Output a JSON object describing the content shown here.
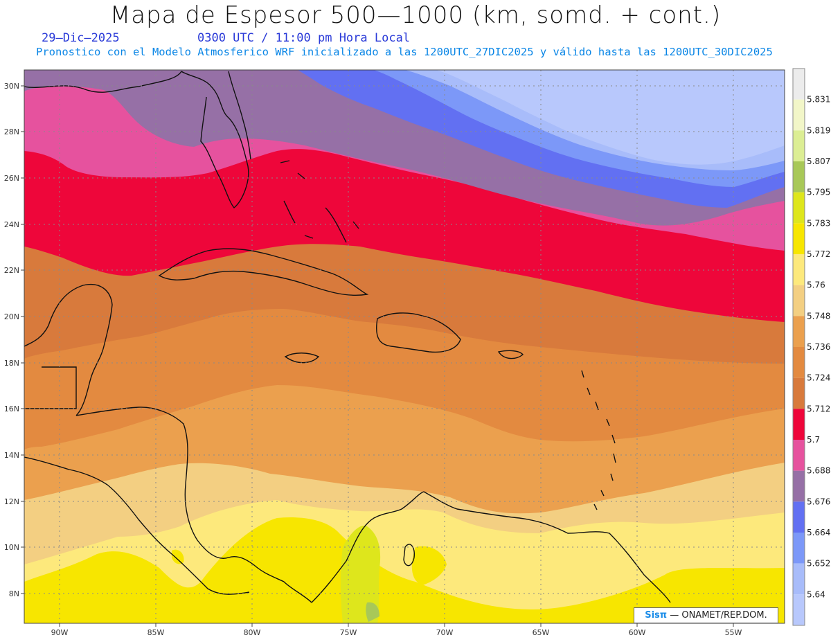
{
  "header": {
    "title": "Mapa de Espesor 500—1000 (km, somd. + cont.)",
    "date": "29—Dic—2025",
    "time": "0300 UTC / 11:00 pm Hora Local",
    "subtitle": "Pronostico con el Modelo Atmosferico WRF inicializado a las 1200UTC_27DIC2025 y válido hasta las  1200UTC_30DIC2025"
  },
  "axes": {
    "lat_labels": [
      "30N",
      "28N",
      "26N",
      "24N",
      "22N",
      "20N",
      "18N",
      "16N",
      "14N",
      "12N",
      "10N",
      "8N"
    ],
    "lon_labels": [
      "90W",
      "85W",
      "80W",
      "75W",
      "70W",
      "65W",
      "60W",
      "55W"
    ]
  },
  "legend": {
    "labels": [
      "5.831",
      "5.819",
      "5.807",
      "5.795",
      "5.783",
      "5.772",
      "5.76",
      "5.748",
      "5.736",
      "5.724",
      "5.712",
      "5.7",
      "5.688",
      "5.676",
      "5.664",
      "5.652",
      "5.64"
    ],
    "colors": [
      "#ececec",
      "#f2f6c8",
      "#dcee94",
      "#a8c858",
      "#dee61c",
      "#f7e600",
      "#fde97c",
      "#f3cf82",
      "#eba04e",
      "#e38a40",
      "#d87a3c",
      "#ee063a",
      "#e6529e",
      "#9670a6",
      "#6270f2",
      "#7c98f8",
      "#a8bcfa",
      "#b8c8fc"
    ]
  },
  "credit": {
    "brand": "Sisπ",
    "org": "— ONAMET/REP.DOM."
  }
}
